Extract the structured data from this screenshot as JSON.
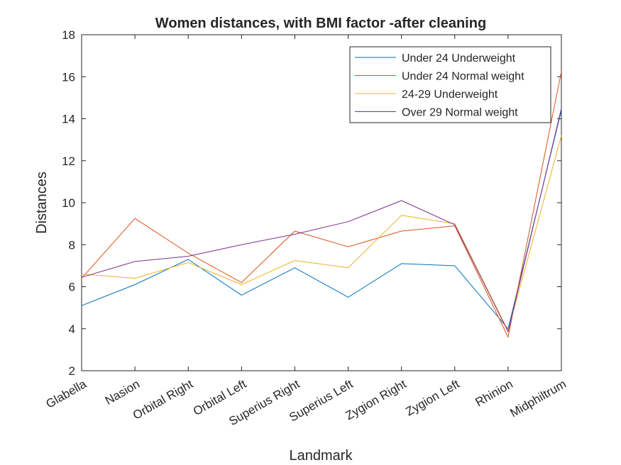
{
  "chart_data": {
    "type": "line",
    "title": "Women distances, with BMI factor -after cleaning",
    "xlabel": "Landmark",
    "ylabel": "Distances",
    "categories": [
      "Glabella",
      "Nasion",
      "Orbital Right",
      "Orbital Left",
      "Superius Right",
      "Superius Left",
      "Zygion Right",
      "Zygion Left",
      "Rhinion",
      "Midphiltrum"
    ],
    "ylim": [
      2,
      18
    ],
    "yticks": [
      2,
      4,
      6,
      8,
      10,
      12,
      14,
      16,
      18
    ],
    "legend_position": "top-right",
    "grid": false,
    "series": [
      {
        "name": "Under 24 Underweight",
        "color": "#0072BD",
        "values": [
          5.1,
          6.1,
          7.3,
          5.6,
          6.9,
          5.5,
          7.1,
          7.0,
          4.0,
          14.4
        ]
      },
      {
        "name": "Under 24 Normal weight",
        "color": "#D95319",
        "values": [
          6.4,
          9.25,
          7.6,
          6.2,
          8.65,
          7.9,
          8.65,
          8.9,
          3.6,
          16.25
        ]
      },
      {
        "name": "24-29 Underweight",
        "color": "#EDB120",
        "values": [
          6.6,
          6.4,
          7.15,
          6.1,
          7.25,
          6.9,
          9.4,
          9.0,
          3.9,
          13.2
        ]
      },
      {
        "name": "Over 29 Normal weight",
        "color": "#7E2F8E",
        "values": [
          6.45,
          7.2,
          7.45,
          8.0,
          8.5,
          9.1,
          10.1,
          8.95,
          3.85,
          14.5
        ]
      }
    ]
  }
}
